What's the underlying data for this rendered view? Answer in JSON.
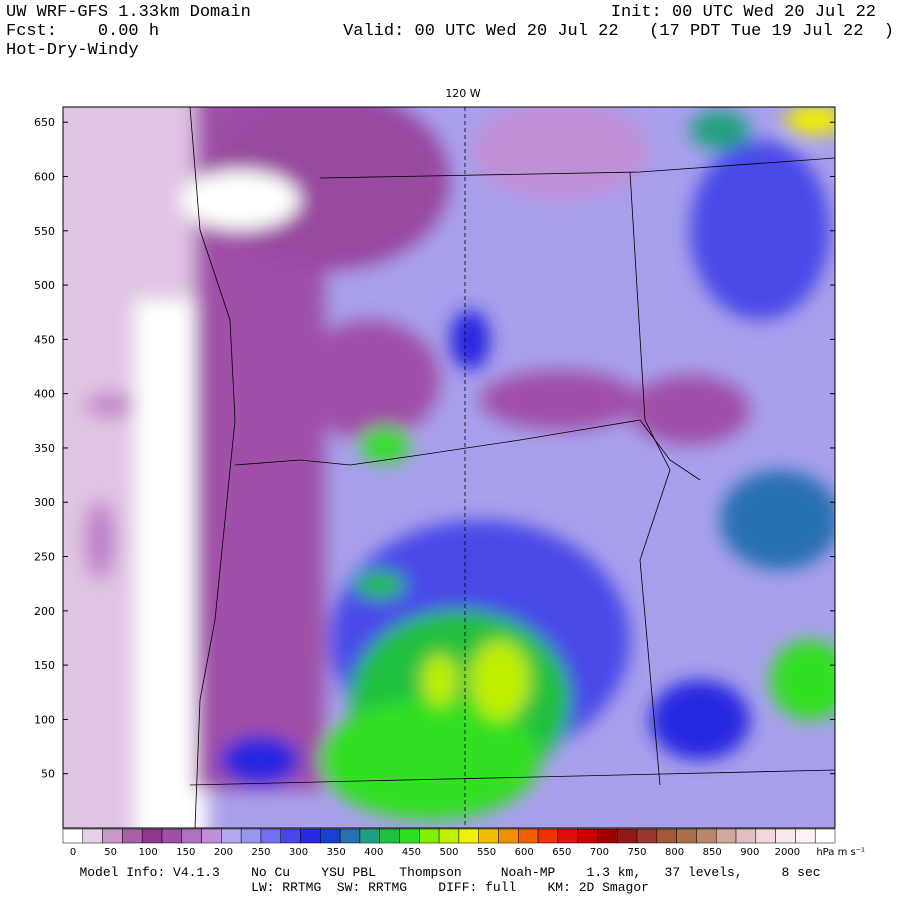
{
  "header": {
    "title": "UW WRF-GFS 1.33km Domain",
    "forecast": "Fcst:    0.00 h",
    "product": "Hot-Dry-Windy",
    "init": "Init: 00 UTC Wed 20 Jul 22",
    "valid": "Valid: 00 UTC Wed 20 Jul 22   (17 PDT Tue 19 Jul 22  )"
  },
  "map": {
    "meridian_label": "120 W",
    "ylim": [
      0,
      664
    ],
    "yticks": [
      50,
      100,
      150,
      200,
      250,
      300,
      350,
      400,
      450,
      500,
      550,
      600,
      650
    ]
  },
  "colorbar": {
    "labels": [
      "0",
      "50",
      "100",
      "150",
      "200",
      "250",
      "300",
      "350",
      "400",
      "450",
      "500",
      "550",
      "600",
      "650",
      "700",
      "750",
      "800",
      "850",
      "900",
      "2000"
    ],
    "unit": "hPa m s⁻¹",
    "colors": [
      "#ffffff",
      "#e8d0e8",
      "#c898c8",
      "#a860a8",
      "#903890",
      "#a050a8",
      "#b070c0",
      "#c090d8",
      "#b0a8f0",
      "#9898f0",
      "#7070f0",
      "#4848e8",
      "#2828e0",
      "#1840d0",
      "#2870b0",
      "#20a080",
      "#20c040",
      "#30e020",
      "#80f000",
      "#c0f000",
      "#f0f000",
      "#f0c000",
      "#f09000",
      "#f06000",
      "#f03000",
      "#e01010",
      "#c80000",
      "#a00000",
      "#901818",
      "#983830",
      "#a05838",
      "#a87048",
      "#b88868",
      "#d0a8a0",
      "#e0c0c0",
      "#f0d8d8",
      "#f8e8f0",
      "#fcf4f8",
      "#ffffff"
    ]
  },
  "footer": {
    "line1": "Model Info: V4.1.3    No Cu    YSU PBL   Thompson     Noah-MP    1.3 km,   37 levels,     8 sec",
    "line2": "LW: RRTMG  SW: RRTMG    DIFF: full    KM: 2D Smagor"
  }
}
